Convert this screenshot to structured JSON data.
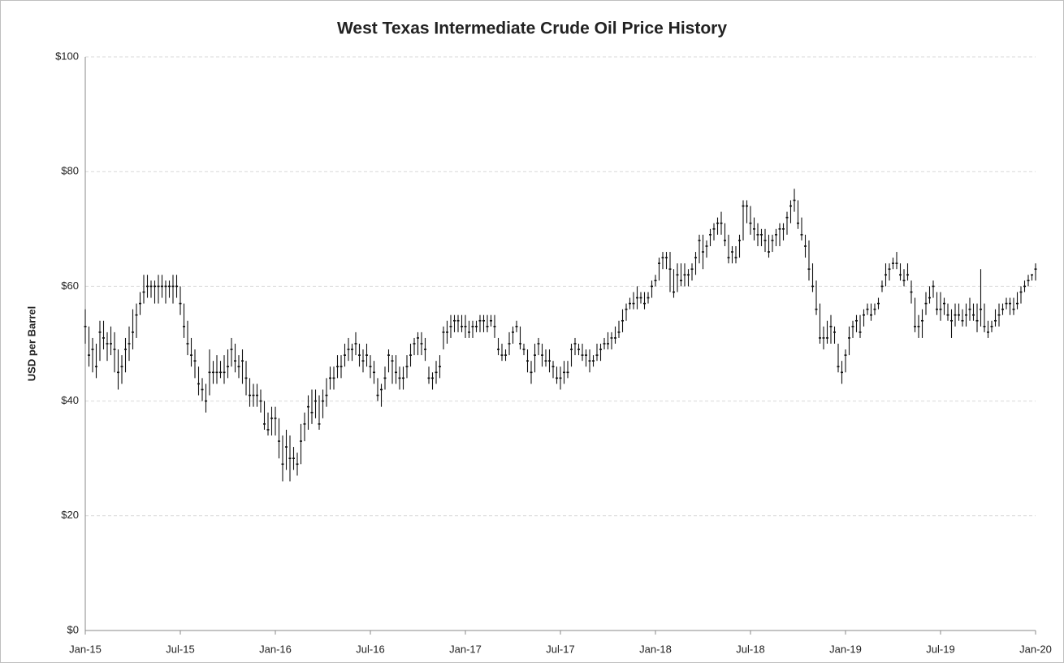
{
  "chart_data": {
    "type": "hlc",
    "title": "West Texas Intermediate Crude Oil Price History",
    "y_label": "USD per Barrel",
    "categories": [
      "Jan-15",
      null,
      null,
      null,
      null,
      null,
      null,
      null,
      null,
      null,
      null,
      null,
      null,
      null,
      null,
      null,
      null,
      null,
      null,
      null,
      null,
      null,
      null,
      null,
      null,
      null,
      "Jul-15",
      null,
      null,
      null,
      null,
      null,
      null,
      null,
      null,
      null,
      null,
      null,
      null,
      null,
      null,
      null,
      null,
      null,
      null,
      null,
      null,
      null,
      null,
      null,
      null,
      null,
      "Jan-16",
      null,
      null,
      null,
      null,
      null,
      null,
      null,
      null,
      null,
      null,
      null,
      null,
      null,
      null,
      null,
      null,
      null,
      null,
      null,
      null,
      null,
      null,
      null,
      null,
      null,
      "Jul-16",
      null,
      null,
      null,
      null,
      null,
      null,
      null,
      null,
      null,
      null,
      null,
      null,
      null,
      null,
      null,
      null,
      null,
      null,
      null,
      null,
      null,
      null,
      null,
      null,
      null,
      "Jan-17",
      null,
      null,
      null,
      null,
      null,
      null,
      null,
      null,
      null,
      null,
      null,
      null,
      null,
      null,
      null,
      null,
      null,
      null,
      null,
      null,
      null,
      null,
      null,
      null,
      null,
      "Jul-17",
      null,
      null,
      null,
      null,
      null,
      null,
      null,
      null,
      null,
      null,
      null,
      null,
      null,
      null,
      null,
      null,
      null,
      null,
      null,
      null,
      null,
      null,
      null,
      null,
      null,
      "Jan-18",
      null,
      null,
      null,
      null,
      null,
      null,
      null,
      null,
      null,
      null,
      null,
      null,
      null,
      null,
      null,
      null,
      null,
      null,
      null,
      null,
      null,
      null,
      null,
      null,
      null,
      "Jul-18",
      null,
      null,
      null,
      null,
      null,
      null,
      null,
      null,
      null,
      null,
      null,
      null,
      null,
      null,
      null,
      null,
      null,
      null,
      null,
      null,
      null,
      null,
      null,
      null,
      null,
      "Jan-19",
      null,
      null,
      null,
      null,
      null,
      null,
      null,
      null,
      null,
      null,
      null,
      null,
      null,
      null,
      null,
      null,
      null,
      null,
      null,
      null,
      null,
      null,
      null,
      null,
      null,
      "Jul-19",
      null,
      null,
      null,
      null,
      null,
      null,
      null,
      null,
      null,
      null,
      null,
      null,
      null,
      null,
      null,
      null,
      null,
      null,
      null,
      null,
      null,
      null,
      null,
      null,
      null,
      "Jan-20"
    ],
    "high": [
      56,
      53,
      51,
      50,
      54,
      54,
      52,
      53,
      52,
      49,
      48,
      51,
      53,
      56,
      57,
      59,
      62,
      62,
      61,
      61,
      62,
      62,
      61,
      61,
      62,
      62,
      60,
      57,
      54,
      51,
      49,
      46,
      44,
      43,
      49,
      47,
      48,
      47,
      48,
      49,
      51,
      50,
      48,
      49,
      47,
      44,
      43,
      43,
      42,
      40,
      38,
      39,
      39,
      37,
      34,
      35,
      34,
      32,
      31,
      36,
      38,
      41,
      42,
      42,
      41,
      42,
      44,
      46,
      46,
      48,
      48,
      50,
      51,
      50,
      52,
      50,
      49,
      50,
      48,
      47,
      44,
      43,
      46,
      49,
      48,
      48,
      46,
      46,
      48,
      50,
      51,
      52,
      52,
      51,
      46,
      45,
      47,
      48,
      53,
      54,
      55,
      55,
      55,
      55,
      55,
      54,
      54,
      54,
      55,
      55,
      55,
      55,
      55,
      51,
      50,
      49,
      52,
      53,
      54,
      53,
      50,
      49,
      47,
      50,
      51,
      50,
      49,
      49,
      47,
      46,
      46,
      47,
      47,
      50,
      51,
      50,
      50,
      49,
      49,
      48,
      50,
      50,
      51,
      52,
      52,
      53,
      54,
      56,
      57,
      58,
      59,
      60,
      59,
      59,
      59,
      61,
      62,
      65,
      66,
      66,
      66,
      63,
      64,
      64,
      64,
      63,
      64,
      66,
      69,
      69,
      68,
      70,
      71,
      72,
      73,
      71,
      69,
      67,
      67,
      69,
      75,
      75,
      74,
      72,
      71,
      70,
      70,
      69,
      69,
      70,
      71,
      71,
      73,
      75,
      77,
      75,
      72,
      69,
      68,
      64,
      61,
      57,
      53,
      54,
      55,
      53,
      50,
      47,
      49,
      53,
      54,
      55,
      55,
      56,
      57,
      57,
      57,
      58,
      61,
      64,
      64,
      65,
      66,
      64,
      63,
      64,
      61,
      58,
      55,
      56,
      59,
      60,
      61,
      59,
      59,
      58,
      57,
      56,
      57,
      57,
      56,
      57,
      58,
      57,
      57,
      63,
      57,
      54,
      54,
      56,
      57,
      57,
      58,
      58,
      58,
      59,
      60,
      61,
      62,
      62,
      64
    ],
    "low": [
      50,
      46,
      45,
      44,
      47,
      49,
      47,
      48,
      45,
      42,
      43,
      45,
      47,
      49,
      51,
      55,
      57,
      58,
      58,
      57,
      57,
      58,
      57,
      58,
      57,
      58,
      55,
      51,
      48,
      46,
      44,
      41,
      40,
      38,
      41,
      43,
      43,
      44,
      43,
      44,
      46,
      45,
      44,
      43,
      41,
      39,
      39,
      39,
      38,
      35,
      34,
      34,
      34,
      30,
      26,
      28,
      26,
      28,
      27,
      29,
      33,
      35,
      36,
      37,
      35,
      37,
      39,
      42,
      42,
      44,
      44,
      46,
      47,
      47,
      48,
      46,
      45,
      46,
      44,
      43,
      40,
      39,
      42,
      45,
      43,
      43,
      42,
      42,
      44,
      46,
      48,
      48,
      48,
      47,
      43,
      42,
      43,
      44,
      49,
      50,
      51,
      52,
      52,
      52,
      51,
      51,
      51,
      52,
      52,
      52,
      52,
      53,
      51,
      48,
      47,
      47,
      48,
      50,
      52,
      49,
      48,
      45,
      43,
      45,
      48,
      46,
      46,
      45,
      44,
      43,
      42,
      43,
      44,
      46,
      48,
      48,
      47,
      46,
      45,
      46,
      47,
      47,
      49,
      49,
      49,
      50,
      51,
      52,
      54,
      56,
      56,
      56,
      57,
      56,
      57,
      58,
      60,
      61,
      63,
      63,
      59,
      58,
      59,
      60,
      60,
      60,
      61,
      62,
      64,
      63,
      65,
      67,
      68,
      69,
      69,
      67,
      64,
      64,
      64,
      65,
      68,
      71,
      69,
      68,
      67,
      67,
      66,
      65,
      66,
      67,
      67,
      68,
      69,
      71,
      73,
      70,
      68,
      65,
      61,
      59,
      55,
      50,
      49,
      50,
      50,
      50,
      45,
      43,
      45,
      48,
      51,
      52,
      51,
      53,
      55,
      54,
      55,
      56,
      59,
      60,
      61,
      63,
      63,
      61,
      60,
      61,
      57,
      52,
      51,
      51,
      55,
      57,
      58,
      55,
      54,
      55,
      54,
      51,
      53,
      54,
      53,
      53,
      54,
      54,
      52,
      53,
      52,
      51,
      52,
      53,
      53,
      55,
      56,
      55,
      55,
      56,
      57,
      59,
      60,
      61,
      61
    ],
    "close": [
      53,
      48,
      49,
      46,
      52,
      51,
      50,
      50,
      49,
      45,
      46,
      49,
      50,
      52,
      55,
      57,
      59,
      60,
      60,
      60,
      60,
      60,
      60,
      60,
      60,
      60,
      57,
      53,
      50,
      48,
      47,
      43,
      42,
      40,
      45,
      45,
      45,
      45,
      45,
      46,
      49,
      47,
      46,
      47,
      44,
      41,
      41,
      41,
      40,
      36,
      35,
      37,
      37,
      33,
      29,
      32,
      30,
      30,
      29,
      33,
      36,
      39,
      38,
      40,
      36,
      40,
      41,
      44,
      44,
      46,
      46,
      48,
      49,
      49,
      50,
      48,
      47,
      48,
      46,
      45,
      41,
      42,
      44,
      48,
      47,
      45,
      44,
      44,
      46,
      48,
      50,
      51,
      50,
      49,
      44,
      44,
      45,
      46,
      52,
      52,
      53,
      54,
      54,
      53,
      53,
      52,
      53,
      53,
      54,
      54,
      53,
      54,
      53,
      49,
      48,
      48,
      50,
      52,
      53,
      50,
      49,
      47,
      45,
      48,
      50,
      48,
      47,
      47,
      46,
      44,
      44,
      45,
      45,
      49,
      50,
      49,
      48,
      48,
      47,
      47,
      48,
      49,
      50,
      50,
      51,
      51,
      52,
      54,
      56,
      57,
      57,
      58,
      58,
      57,
      58,
      60,
      61,
      64,
      65,
      65,
      63,
      59,
      62,
      61,
      62,
      62,
      63,
      65,
      68,
      66,
      67,
      69,
      70,
      71,
      71,
      68,
      65,
      66,
      65,
      68,
      74,
      74,
      71,
      70,
      69,
      69,
      68,
      66,
      68,
      69,
      70,
      70,
      72,
      74,
      75,
      71,
      69,
      67,
      63,
      60,
      56,
      51,
      51,
      51,
      53,
      52,
      46,
      45,
      48,
      51,
      53,
      54,
      52,
      55,
      56,
      55,
      56,
      57,
      60,
      62,
      63,
      64,
      64,
      62,
      61,
      62,
      59,
      53,
      53,
      54,
      57,
      58,
      60,
      56,
      56,
      57,
      55,
      54,
      55,
      55,
      54,
      55,
      56,
      55,
      54,
      56,
      53,
      52,
      53,
      54,
      55,
      56,
      57,
      57,
      56,
      57,
      59,
      60,
      61,
      62,
      63
    ],
    "color": "#111111",
    "ylim": [
      0,
      100
    ],
    "yticks": [
      {
        "value": 0,
        "label": "$0"
      },
      {
        "value": 20,
        "label": "$20"
      },
      {
        "value": 40,
        "label": "$40"
      },
      {
        "value": 60,
        "label": "$60"
      },
      {
        "value": 80,
        "label": "$80"
      },
      {
        "value": 100,
        "label": "$100"
      }
    ],
    "grid": true
  }
}
